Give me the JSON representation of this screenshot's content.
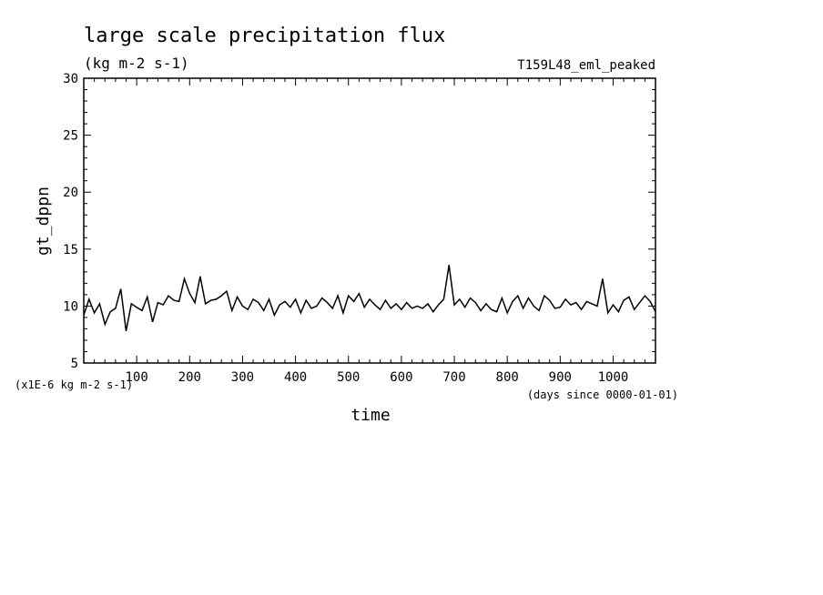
{
  "chart_data": {
    "type": "line",
    "title": "large scale precipitation flux",
    "subtitle": "(kg m-2 s-1)",
    "experiment": "T159L48_eml_peaked",
    "ylabel": "gt_dppn",
    "xlabel": "time",
    "y_unit_note": "(x1E-6 kg m-2 s-1)",
    "x_unit_note": "(days since 0000-01-01)",
    "xlim": [
      0,
      1080
    ],
    "ylim": [
      5,
      30
    ],
    "x_ticks": [
      100,
      200,
      300,
      400,
      500,
      600,
      700,
      800,
      900,
      1000
    ],
    "x_tick_labels": [
      "100",
      "200",
      "300",
      "400",
      "500",
      "600",
      "700",
      "800",
      "900",
      "1000"
    ],
    "y_ticks": [
      5,
      10,
      15,
      20,
      25,
      30
    ],
    "y_tick_labels": [
      "5",
      "10",
      "15",
      "20",
      "25",
      "30"
    ],
    "grid": false,
    "series": [
      {
        "color": "#000000",
        "x": [
          0,
          10,
          20,
          30,
          40,
          50,
          60,
          70,
          80,
          90,
          100,
          110,
          120,
          130,
          140,
          150,
          160,
          170,
          180,
          190,
          200,
          210,
          220,
          230,
          240,
          250,
          260,
          270,
          280,
          290,
          300,
          310,
          320,
          330,
          340,
          350,
          360,
          370,
          380,
          390,
          400,
          410,
          420,
          430,
          440,
          450,
          460,
          470,
          480,
          490,
          500,
          510,
          520,
          530,
          540,
          550,
          560,
          570,
          580,
          590,
          600,
          610,
          620,
          630,
          640,
          650,
          660,
          670,
          680,
          690,
          700,
          710,
          720,
          730,
          740,
          750,
          760,
          770,
          780,
          790,
          800,
          810,
          820,
          830,
          840,
          850,
          860,
          870,
          880,
          890,
          900,
          910,
          920,
          930,
          940,
          950,
          960,
          970,
          980,
          990,
          1000,
          1010,
          1020,
          1030,
          1040,
          1050,
          1060,
          1070,
          1080
        ],
        "values": [
          9.2,
          10.6,
          9.4,
          10.2,
          8.4,
          9.5,
          9.8,
          11.5,
          7.8,
          10.2,
          9.9,
          9.6,
          10.8,
          8.6,
          10.3,
          10.1,
          10.9,
          10.5,
          10.4,
          12.4,
          11.1,
          10.3,
          12.6,
          10.2,
          10.5,
          10.6,
          10.9,
          11.3,
          9.6,
          10.8,
          10.0,
          9.7,
          10.6,
          10.3,
          9.6,
          10.6,
          9.2,
          10.1,
          10.4,
          9.9,
          10.6,
          9.4,
          10.5,
          9.8,
          10.0,
          10.7,
          10.3,
          9.8,
          10.9,
          9.4,
          10.9,
          10.4,
          11.1,
          9.9,
          10.6,
          10.1,
          9.7,
          10.5,
          9.8,
          10.2,
          9.7,
          10.3,
          9.8,
          10.0,
          9.8,
          10.2,
          9.5,
          10.1,
          10.6,
          13.6,
          10.1,
          10.6,
          9.9,
          10.7,
          10.3,
          9.6,
          10.2,
          9.7,
          9.5,
          10.7,
          9.4,
          10.4,
          10.9,
          9.8,
          10.7,
          10.0,
          9.6,
          10.9,
          10.5,
          9.8,
          9.9,
          10.6,
          10.1,
          10.3,
          9.7,
          10.4,
          10.2,
          10.0,
          12.4,
          9.4,
          10.1,
          9.5,
          10.5,
          10.8,
          9.7,
          10.3,
          10.9,
          10.4,
          9.5
        ]
      }
    ]
  }
}
